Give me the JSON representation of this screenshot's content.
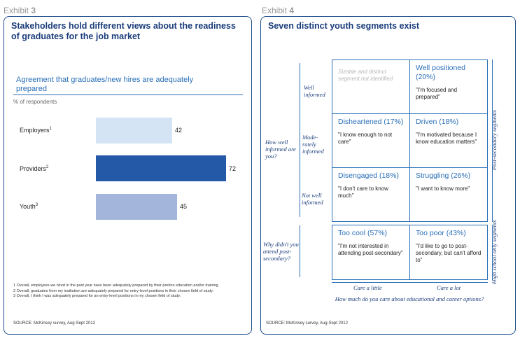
{
  "exhibit3": {
    "label_prefix": "Exhibit",
    "label_num": "3",
    "title": "Stakeholders hold different views about the readiness of graduates for the job market",
    "source": "SOURCE: McKinsey survey, Aug-Sept 2012",
    "footnotes": [
      "1 Overall, employees we hired in the past year have been adequately prepared by their prehire education and/or training.",
      "2 Overall, graduates from my institution are adequately prepared for entry-level positions in their chosen field of study.",
      "3 Overall, I think I was adequately prepared for an entry-level positions in my chosen field of study."
    ]
  },
  "chart_data": {
    "type": "bar",
    "orientation": "horizontal",
    "title": "Agreement that graduates/new hires are adequately prepared",
    "ylabel": "% of respondents",
    "categories": [
      "Employers",
      "Providers",
      "Youth"
    ],
    "footnote_marks": [
      "1",
      "2",
      "3"
    ],
    "values": [
      42,
      72,
      45
    ],
    "xlim": [
      0,
      72
    ],
    "colors": [
      "#d4e4f5",
      "#2459a8",
      "#a3b5db"
    ]
  },
  "exhibit4": {
    "label_prefix": "Exhibit",
    "label_num": "4",
    "title": "Seven distinct youth segments exist",
    "source": "SOURCE: McKinsey survey, Aug-Sept 2012",
    "y_question": "How well informed are you?",
    "row_labels": [
      "Well informed",
      "Mode-rately informed",
      "Not well informed"
    ],
    "hs_question": "Why didn't you attend post-secondary?",
    "col_labels": [
      "Care a little",
      "Care a lot"
    ],
    "x_question": "How much do you care about educational and career options?",
    "post_secondary_label": "Post-secondary segments",
    "high_school_label": "High school only segments",
    "empty_cell": "Sizable and distinct segment not identified",
    "cells": [
      {
        "segment": "Well positioned (20%)",
        "quote": "\"I'm focused and prepared\""
      },
      {
        "segment": "Disheartened (17%)",
        "quote": "\"I know enough to not care\""
      },
      {
        "segment": "Driven (18%)",
        "quote": "\"I'm motivated because I know education matters\""
      },
      {
        "segment": "Disengaged (18%)",
        "quote": "\"I don't care to know much\""
      },
      {
        "segment": "Struggling (26%)",
        "quote": "\"I want to know more\""
      },
      {
        "segment": "Too cool (57%)",
        "quote": "\"I'm not interested in attending post-secondary\""
      },
      {
        "segment": "Too poor (43%)",
        "quote": "\"I'd like to go to post-secondary, but can't afford to\""
      }
    ]
  }
}
